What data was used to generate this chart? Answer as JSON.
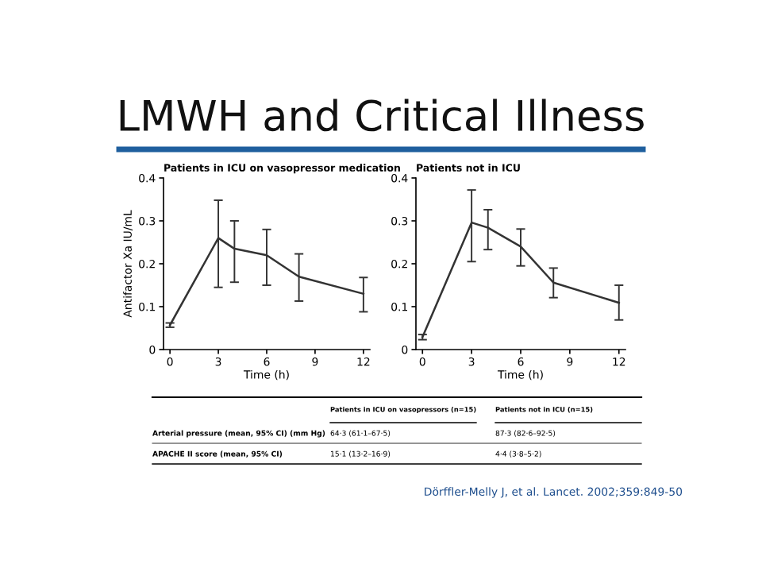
{
  "chart_data": [
    {
      "type": "line",
      "title": "Patients in ICU on vasopressor medication",
      "xlabel": "Time (h)",
      "ylabel": "Antifactor Xa IU/mL",
      "x": [
        0,
        3,
        4,
        6,
        8,
        12
      ],
      "series": [
        {
          "color": "#333333",
          "values": [
            0.057,
            0.26,
            0.235,
            0.22,
            0.17,
            0.13
          ],
          "errors": [
            [
              0.052,
              0.062
            ],
            [
              0.145,
              0.348
            ],
            [
              0.157,
              0.3
            ],
            [
              0.15,
              0.28
            ],
            [
              0.113,
              0.223
            ],
            [
              0.088,
              0.168
            ]
          ]
        }
      ],
      "xlim": [
        -0.4,
        12.4
      ],
      "ylim": [
        0,
        0.4
      ],
      "xticks": [
        0,
        3,
        6,
        9,
        12
      ],
      "yticks": [
        0,
        0.1,
        0.2,
        0.3,
        0.4
      ],
      "grid": false,
      "marker": "none",
      "line_style": "solid",
      "annotations": [
        "LMWH and Critical Illness"
      ]
    },
    {
      "type": "line",
      "title": "Patients not in ICU",
      "xlabel": "Time (h)",
      "x": [
        0,
        3,
        4,
        6,
        8,
        12
      ],
      "series": [
        {
          "color": "#333333",
          "values": [
            0.029,
            0.296,
            0.284,
            0.24,
            0.156,
            0.109
          ],
          "errors": [
            [
              0.023,
              0.035
            ],
            [
              0.205,
              0.372
            ],
            [
              0.233,
              0.326
            ],
            [
              0.195,
              0.281
            ],
            [
              0.121,
              0.19
            ],
            [
              0.069,
              0.15
            ]
          ]
        }
      ],
      "xlim": [
        -0.4,
        12.4
      ],
      "ylim": [
        0,
        0.4
      ],
      "xticks": [
        0,
        3,
        6,
        9,
        12
      ],
      "yticks": [
        0,
        0.1,
        0.2,
        0.3,
        0.4
      ],
      "grid": false,
      "marker": "none",
      "line_style": "solid",
      "annotations": [
        "Patients in ICU on vasopressors (n=15)",
        "Patients not in ICU (n=15)",
        "Arterial pressure (mean, 95% CI) (mm Hg)",
        "64·3 (61·1–67·5)",
        "87·3 (82·6–92·5)",
        "APACHE II score (mean, 95% CI)",
        "15·1 (13·2–16·9)",
        "4·4 (3·8–5·2)",
        "Dörffler-Melly J, et al. Lancet. 2002;359:849-50"
      ]
    }
  ]
}
